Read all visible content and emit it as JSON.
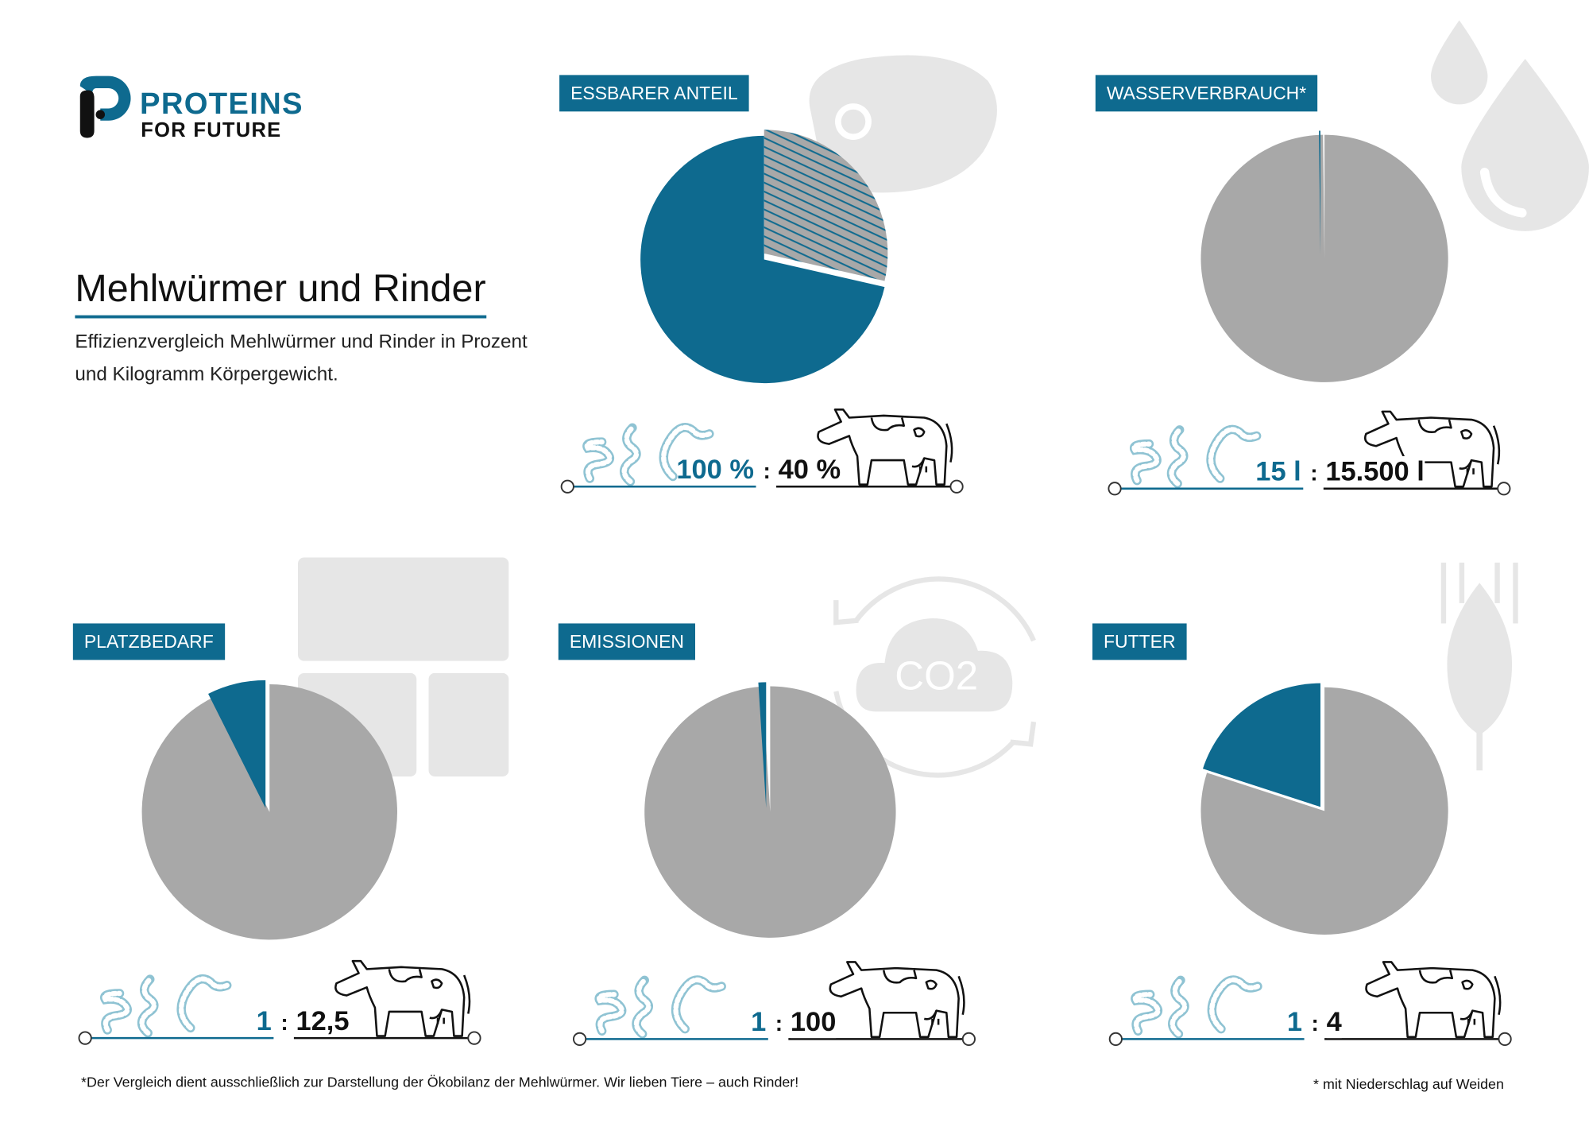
{
  "logo": {
    "line1": "PROTEINS",
    "line2": "FOR FUTURE"
  },
  "header": {
    "title": "Mehlwürmer und Rinder",
    "subtitle": "Effizienzvergleich Mehlwürmer und Rinder in Prozent und Kilogramm Körpergewicht."
  },
  "colors": {
    "accent": "#0e6a8f",
    "grey": "#a8a8a8",
    "icon_bg": "#e6e6e6",
    "worm": "#8fc3d3"
  },
  "chart_data": [
    {
      "type": "pie",
      "title": "ESSBARER ANTEIL",
      "series": [
        {
          "name": "Mehlwürmer",
          "value": 100
        },
        {
          "name": "Rinder",
          "value": 40
        }
      ],
      "worm_label": "100 %",
      "cow_label": "40 %"
    },
    {
      "type": "pie",
      "title": "WASSERVERBRAUCH*",
      "series": [
        {
          "name": "Mehlwürmer",
          "value": 15
        },
        {
          "name": "Rinder",
          "value": 15500
        }
      ],
      "worm_label": "15 l",
      "cow_label": "15.500 l"
    },
    {
      "type": "pie",
      "title": "PLATZBEDARF",
      "series": [
        {
          "name": "Mehlwürmer",
          "value": 1
        },
        {
          "name": "Rinder",
          "value": 12.5
        }
      ],
      "worm_label": "1",
      "cow_label": "12,5"
    },
    {
      "type": "pie",
      "title": "EMISSIONEN",
      "series": [
        {
          "name": "Mehlwürmer",
          "value": 1
        },
        {
          "name": "Rinder",
          "value": 100
        }
      ],
      "worm_label": "1",
      "cow_label": "100"
    },
    {
      "type": "pie",
      "title": "FUTTER",
      "series": [
        {
          "name": "Mehlwürmer",
          "value": 1
        },
        {
          "name": "Rinder",
          "value": 4
        }
      ],
      "worm_label": "1",
      "cow_label": "4"
    }
  ],
  "ratio_separator": ":",
  "co2_label": "CO2",
  "footnotes": {
    "left": "*Der Vergleich dient ausschließlich zur Darstellung der Ökobilanz der Mehlwürmer. Wir lieben Tiere – auch Rinder!",
    "right": "* mit Niederschlag auf Weiden"
  }
}
